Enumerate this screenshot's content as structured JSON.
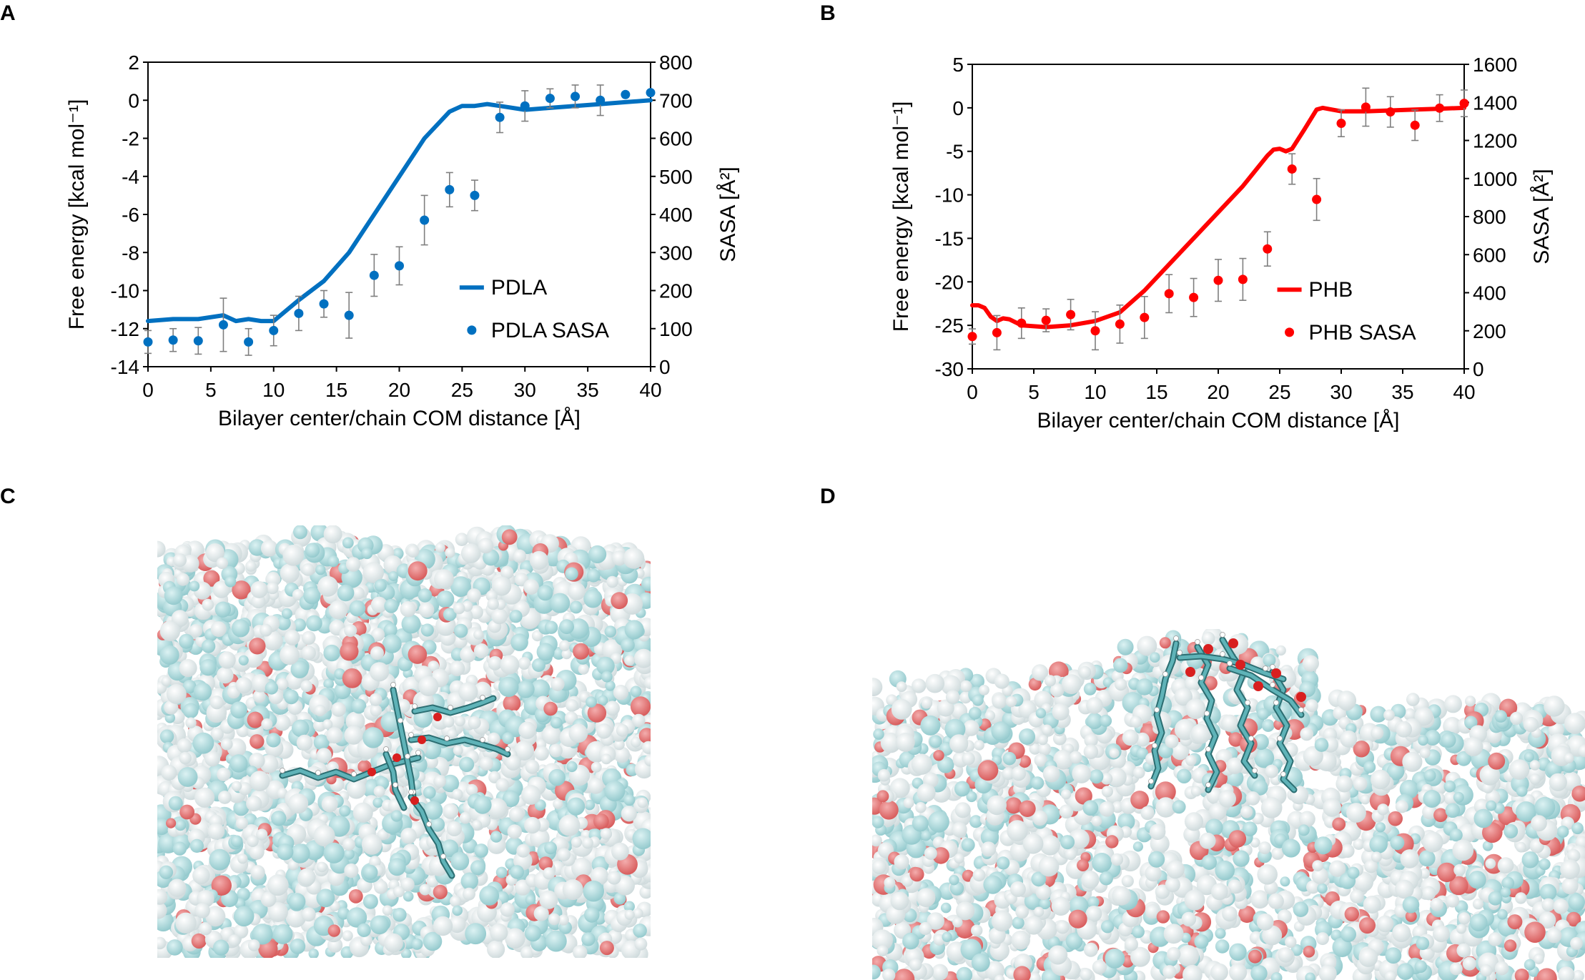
{
  "panels": {
    "a": "A",
    "b": "B",
    "c": "C",
    "d": "D"
  },
  "chart_data": [
    {
      "type": "line",
      "panel": "A",
      "xlabel": "Bilayer center/chain COM distance [Å]",
      "ylabel": "Free energy [kcal mol⁻¹]",
      "y2label": "SASA [Å²]",
      "xlim": [
        0,
        40
      ],
      "ylim": [
        -14,
        2
      ],
      "y2lim": [
        0,
        800
      ],
      "xticks": [
        0,
        5,
        10,
        15,
        20,
        25,
        30,
        35,
        40
      ],
      "yticks": [
        2,
        0,
        -2,
        -4,
        -6,
        -8,
        -10,
        -12,
        -14
      ],
      "y2ticks": [
        800,
        700,
        600,
        500,
        400,
        300,
        200,
        100,
        0
      ],
      "color": "#0070C0",
      "legend_position": "lower-right",
      "series": [
        {
          "name": "PDLA",
          "kind": "line",
          "axis": "left",
          "x": [
            0,
            2,
            4,
            6,
            7,
            8,
            9,
            10,
            12,
            14,
            16,
            18,
            20,
            22,
            24,
            25,
            26,
            27,
            28,
            30,
            32,
            34,
            36,
            38,
            40
          ],
          "y": [
            -11.6,
            -11.5,
            -11.5,
            -11.3,
            -11.6,
            -11.5,
            -11.6,
            -11.6,
            -10.5,
            -9.5,
            -8,
            -6,
            -4,
            -2,
            -0.6,
            -0.3,
            -0.3,
            -0.2,
            -0.3,
            -0.5,
            -0.4,
            -0.3,
            -0.2,
            -0.1,
            0
          ]
        },
        {
          "name": "PDLA SASA",
          "kind": "scatter",
          "axis": "right",
          "x": [
            0,
            2,
            4,
            6,
            8,
            10,
            12,
            14,
            16,
            18,
            20,
            22,
            24,
            26,
            28,
            30,
            32,
            34,
            36,
            38,
            40
          ],
          "y": [
            65,
            70,
            68,
            110,
            65,
            95,
            140,
            165,
            135,
            240,
            265,
            385,
            465,
            450,
            655,
            685,
            705,
            710,
            700,
            715,
            720
          ],
          "err": [
            30,
            30,
            35,
            70,
            35,
            40,
            45,
            35,
            60,
            55,
            50,
            65,
            45,
            40,
            40,
            40,
            25,
            30,
            40,
            0,
            0
          ]
        }
      ]
    },
    {
      "type": "line",
      "panel": "B",
      "xlabel": "Bilayer center/chain COM distance [Å]",
      "ylabel": "Free energy [kcal mol⁻¹]",
      "y2label": "SASA [Å²]",
      "xlim": [
        0,
        40
      ],
      "ylim": [
        -30,
        5
      ],
      "y2lim": [
        0,
        1600
      ],
      "xticks": [
        0,
        5,
        10,
        15,
        20,
        25,
        30,
        35,
        40
      ],
      "yticks": [
        5,
        0,
        -5,
        -10,
        -15,
        -20,
        -25,
        -30
      ],
      "y2ticks": [
        1600,
        1400,
        1200,
        1000,
        800,
        600,
        400,
        200,
        0
      ],
      "color": "#FF0000",
      "legend_position": "lower-right",
      "series": [
        {
          "name": "PHB",
          "kind": "line",
          "axis": "left",
          "x": [
            0,
            0.5,
            1,
            1.5,
            2,
            2.5,
            3,
            4,
            6,
            8,
            10,
            12,
            14,
            16,
            18,
            20,
            22,
            24,
            24.5,
            25,
            25.5,
            26,
            27,
            28,
            28.5,
            30,
            32,
            34,
            36,
            38,
            40
          ],
          "y": [
            -22.7,
            -22.7,
            -23,
            -24,
            -24.5,
            -24.2,
            -24.3,
            -25,
            -25.2,
            -25,
            -24.5,
            -23.5,
            -21,
            -18,
            -15,
            -12,
            -9,
            -5.5,
            -4.8,
            -4.7,
            -5,
            -4.7,
            -2.5,
            -0.2,
            0,
            -0.4,
            -0.4,
            -0.3,
            -0.2,
            -0.1,
            0
          ]
        },
        {
          "name": "PHB SASA",
          "kind": "scatter",
          "axis": "right",
          "x": [
            0,
            2,
            4,
            6,
            8,
            10,
            12,
            14,
            16,
            18,
            20,
            22,
            24,
            26,
            28,
            30,
            32,
            34,
            36,
            38,
            40
          ],
          "y": [
            170,
            190,
            240,
            255,
            285,
            200,
            235,
            270,
            395,
            375,
            465,
            470,
            630,
            1050,
            890,
            1290,
            1375,
            1350,
            1280,
            1370,
            1395
          ],
          "err": [
            40,
            90,
            80,
            60,
            80,
            100,
            100,
            110,
            100,
            100,
            110,
            110,
            90,
            80,
            110,
            70,
            100,
            80,
            80,
            70,
            70
          ]
        }
      ]
    }
  ]
}
